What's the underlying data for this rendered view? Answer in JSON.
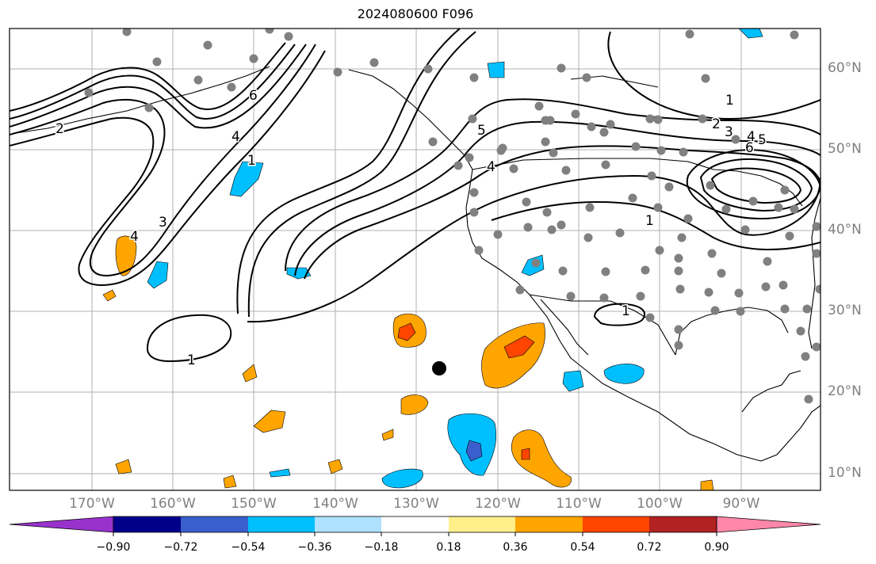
{
  "title": "2024080600 F096",
  "lon_labels": [
    "170°W",
    "160°W",
    "150°W",
    "140°W",
    "130°W",
    "120°W",
    "110°W",
    "100°W",
    "90°W"
  ],
  "lat_labels": [
    "60°N",
    "50°N",
    "40°N",
    "30°N",
    "20°N",
    "10°N"
  ],
  "colorbar": {
    "tick_labels": [
      "−0.90",
      "−0.72",
      "−0.54",
      "−0.36",
      "−0.18",
      "0.18",
      "0.36",
      "0.54",
      "0.72",
      "0.90"
    ],
    "colors": [
      "#9932cc",
      "#00008b",
      "#3a5fcd",
      "#00bfff",
      "#b0e2ff",
      "#ffffff",
      "#fff08b",
      "#ffa500",
      "#ff4500",
      "#b22222",
      "#ff88aa"
    ]
  },
  "contour_labels": [
    "1",
    "2",
    "3",
    "4",
    "5",
    "6"
  ],
  "station_marker_color": "#808080",
  "highlight_point_color": "#000000"
}
